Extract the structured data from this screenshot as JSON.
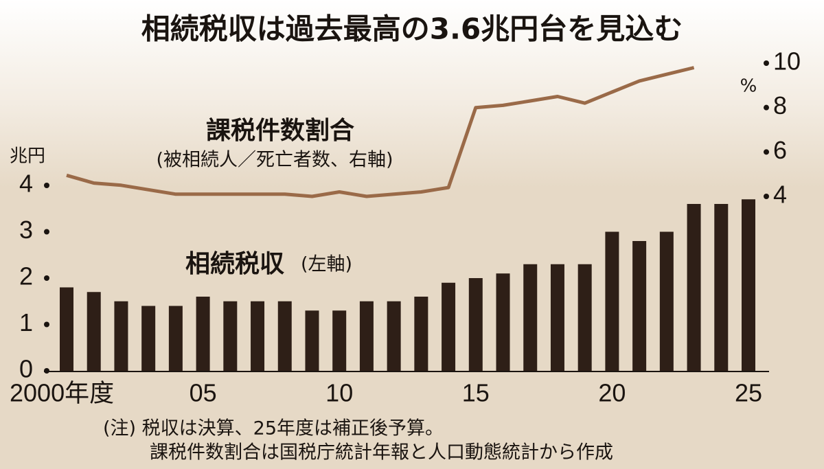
{
  "chart_data": {
    "type": "bar",
    "title": "相続税収は過去最高の3.6兆円台を見込む",
    "categories": [
      "2000年度",
      null,
      null,
      null,
      null,
      "05",
      null,
      null,
      null,
      null,
      "10",
      null,
      null,
      null,
      null,
      "15",
      null,
      null,
      null,
      null,
      "20",
      null,
      null,
      null,
      null,
      "25"
    ],
    "series": [
      {
        "name": "相続税収",
        "note": "(左軸)",
        "color": "#2e1f17",
        "type": "bar",
        "values": [
          1.8,
          1.7,
          1.5,
          1.4,
          1.4,
          1.6,
          1.5,
          1.5,
          1.5,
          1.3,
          1.3,
          1.5,
          1.5,
          1.6,
          1.9,
          2.0,
          2.1,
          2.3,
          2.3,
          2.3,
          3.0,
          2.8,
          3.0,
          3.6,
          3.6,
          3.7
        ]
      },
      {
        "name": "課税件数割合",
        "note": "(被相続人／死亡者数、右軸)",
        "color": "#9a6a48",
        "type": "line",
        "axis": "y2",
        "values": [
          4.95,
          4.6,
          4.5,
          4.3,
          4.1,
          4.1,
          4.1,
          4.1,
          4.1,
          4.0,
          4.2,
          4.0,
          4.1,
          4.2,
          4.4,
          8.0,
          8.1,
          8.3,
          8.5,
          8.2,
          8.7,
          9.2,
          9.5,
          9.8,
          null,
          null
        ]
      }
    ],
    "y_unit": "兆円",
    "y2_unit": "%",
    "ylim": [
      0,
      4
    ],
    "yticks": [
      0,
      1,
      2,
      3,
      4
    ],
    "y2lim": [
      4,
      10
    ],
    "y2ticks": [
      4,
      6,
      8,
      10
    ],
    "notes": [
      "(注) 税収は決算、25年度は補正後予算。",
      "課税件数割合は国税庁統計年報と人口動態統計から作成"
    ]
  }
}
